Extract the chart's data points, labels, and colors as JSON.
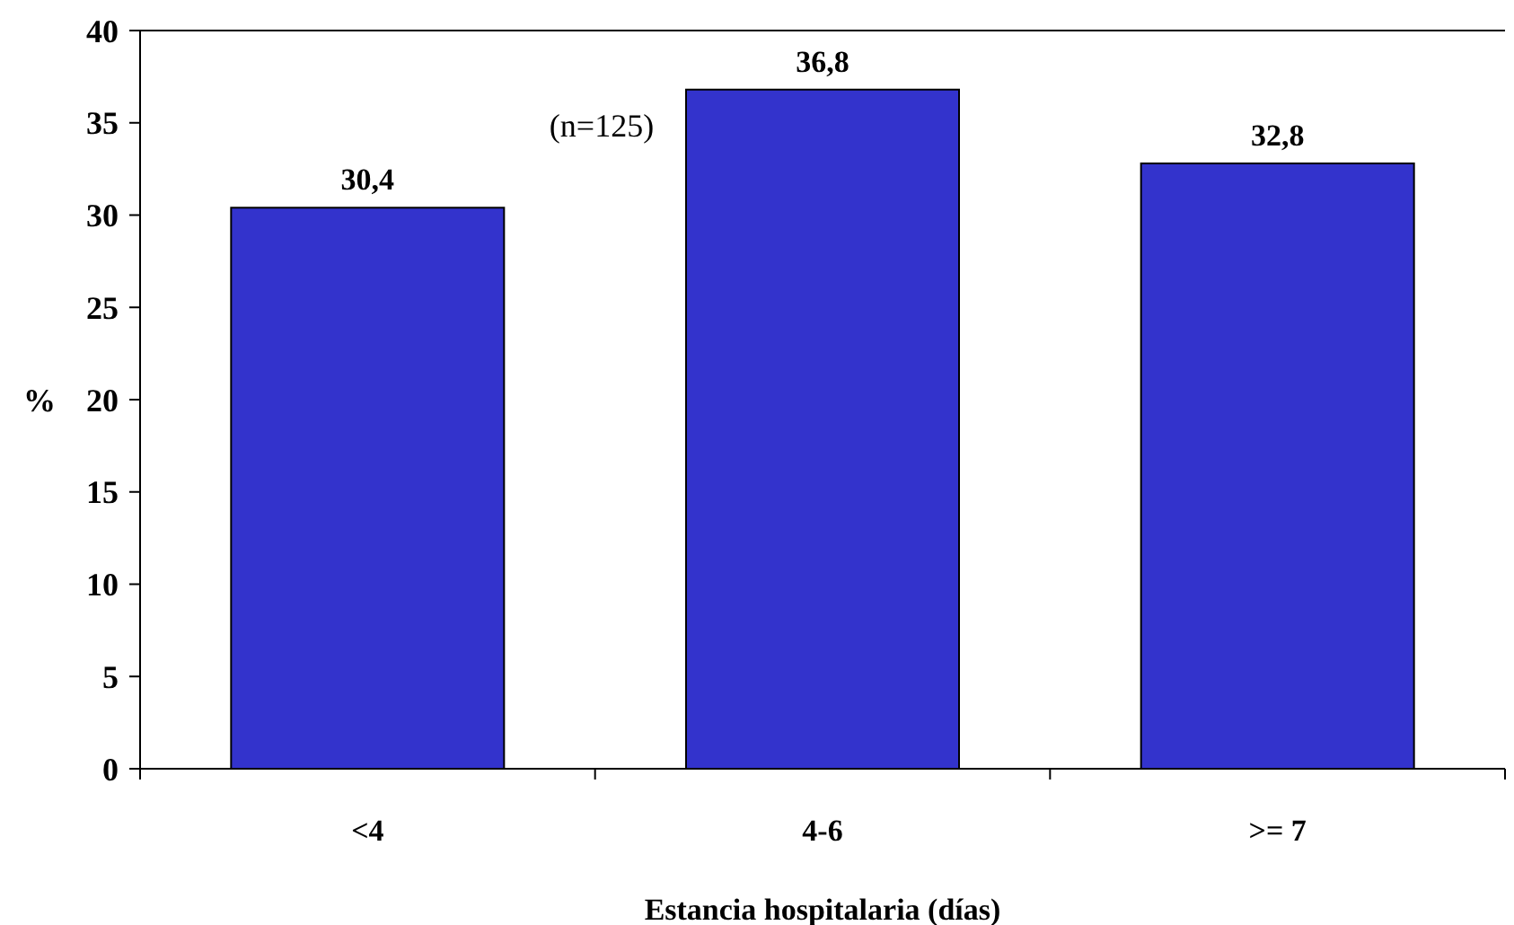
{
  "chart_data": {
    "type": "bar",
    "categories": [
      "<4",
      "4-6",
      ">= 7"
    ],
    "values": [
      30.4,
      36.8,
      32.8
    ],
    "color": "#3333cc",
    "value_labels": [
      "30,4",
      "36,8",
      "32,8"
    ],
    "xlabel": "Estancia hospitalaria (días)",
    "ylabel": "%",
    "ylim": [
      0,
      40
    ],
    "yticks": [
      0,
      5,
      10,
      15,
      20,
      25,
      30,
      35,
      40
    ],
    "annotations": [
      "(n=125)"
    ]
  }
}
